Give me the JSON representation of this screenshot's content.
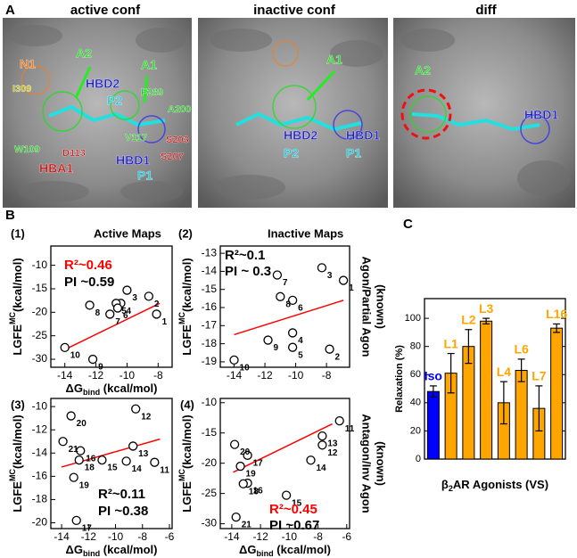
{
  "panel_labels": [
    "A",
    "B",
    "C"
  ],
  "panel_a": {
    "images": [
      {
        "title": "active conf",
        "labels": [
          {
            "text": "N1",
            "color": "#f07a1a"
          },
          {
            "text": "A2",
            "color": "#22dd22"
          },
          {
            "text": "A1",
            "color": "#22dd22"
          },
          {
            "text": "HBD2",
            "color": "#1f1fd0"
          },
          {
            "text": "F289",
            "color": "#22cc22"
          },
          {
            "text": "I309",
            "color": "#c8c820"
          },
          {
            "text": "P2",
            "color": "#20c8d8"
          },
          {
            "text": "A200",
            "color": "#22cc22"
          },
          {
            "text": "V117",
            "color": "#22cc22"
          },
          {
            "text": "S203",
            "color": "#cc1111"
          },
          {
            "text": "W109",
            "color": "#22cc22"
          },
          {
            "text": "D113",
            "color": "#cc1111"
          },
          {
            "text": "S207",
            "color": "#cc1111"
          },
          {
            "text": "HBD1",
            "color": "#1f1fd0"
          },
          {
            "text": "HBA1",
            "color": "#cc1111"
          },
          {
            "text": "P1",
            "color": "#20c8d8"
          }
        ]
      },
      {
        "title": "inactive conf",
        "labels": [
          {
            "text": "A1",
            "color": "#22dd22"
          },
          {
            "text": "HBD2",
            "color": "#1f1fd0"
          },
          {
            "text": "HBD1",
            "color": "#1f1fd0"
          },
          {
            "text": "P2",
            "color": "#20c8d8"
          },
          {
            "text": "P1",
            "color": "#20c8d8"
          }
        ]
      },
      {
        "title": "diff",
        "labels": [
          {
            "text": "A2",
            "color": "#22dd22"
          },
          {
            "text": "HBD1",
            "color": "#1f1fd0"
          }
        ]
      }
    ]
  },
  "chart_data": [
    {
      "type": "scatter",
      "panel": "(1)",
      "title": "Active Maps",
      "xlabel": {
        "text": "ΔG",
        "sub": "bind",
        "unit": " (kcal/mol)"
      },
      "ylabel": {
        "text": "LGFE",
        "sup": "MC",
        "unit": "(kcal/mol)"
      },
      "point_labels": [
        "1",
        "2",
        "3",
        "4",
        "5",
        "6",
        "7",
        "8",
        "9",
        "10"
      ],
      "x": [
        -8.1,
        -8.6,
        -10.0,
        -10.4,
        -10.7,
        -10.6,
        -11.1,
        -12.4,
        -12.2,
        -14.0
      ],
      "y": [
        -20.4,
        -16.6,
        -15.3,
        -18.1,
        -18.1,
        -19.1,
        -20.4,
        -18.5,
        -30.0,
        -27.5
      ],
      "fit": {
        "x": [
          -14.1,
          -7.9
        ],
        "y": [
          -28.1,
          -18.1
        ],
        "color": "#ff0000"
      },
      "annotations": [
        {
          "text": "R²~0.46",
          "color": "#ff0000"
        },
        {
          "text": "PI ~0.59",
          "color": "#000000"
        }
      ],
      "xlim": [
        -14.9,
        -7.1
      ],
      "ylim": [
        -31.7,
        -5.9
      ],
      "xticks": [
        -14,
        -12,
        -10,
        -8
      ],
      "yticks": [
        -10,
        -15,
        -20,
        -25,
        -30
      ]
    },
    {
      "type": "scatter",
      "panel": "(2)",
      "title": "Inactive Maps",
      "ylabel": {
        "text": "LGFE",
        "sup": "MC",
        "unit": "(kcal/mol)"
      },
      "side_label": [
        "Agon/Partial Agon",
        "(known)"
      ],
      "point_labels": [
        "1",
        "2",
        "3",
        "4",
        "5",
        "6",
        "7",
        "8",
        "9",
        "10"
      ],
      "x": [
        -6.9,
        -7.8,
        -8.3,
        -10.2,
        -10.2,
        -10.2,
        -11.2,
        -11.0,
        -11.8,
        -14.0
      ],
      "y": [
        -14.5,
        -18.3,
        -13.8,
        -17.4,
        -18.2,
        -15.6,
        -14.2,
        -15.4,
        -17.8,
        -18.9
      ],
      "fit": {
        "x": [
          -14.0,
          -6.9
        ],
        "y": [
          -17.5,
          -15.6
        ],
        "color": "#ff0000"
      },
      "annotations": [
        {
          "text": "R²~0.1",
          "color": "#000000"
        },
        {
          "text": "PI ~ 0.3",
          "color": "#000000"
        }
      ],
      "xlim": [
        -14.9,
        -6.5
      ],
      "ylim": [
        -19.3,
        -12.6
      ],
      "xticks": [
        -14,
        -12,
        -10,
        -8
      ],
      "yticks": [
        -13,
        -14,
        -15,
        -16,
        -17,
        -18,
        -19
      ]
    },
    {
      "type": "scatter",
      "panel": "(3)",
      "xlabel": {
        "text": "ΔG",
        "sub": "bind",
        "unit": " (kcal/mol)"
      },
      "ylabel": {
        "text": "LGFE",
        "sup": "MC",
        "unit": "(kcal/mol)"
      },
      "point_labels": [
        "11",
        "12",
        "13",
        "14",
        "15",
        "16",
        "17",
        "18",
        "19",
        "20",
        "21"
      ],
      "x": [
        -7.1,
        -8.5,
        -8.7,
        -9.2,
        -11.0,
        -12.6,
        -12.9,
        -12.7,
        -13.1,
        -13.3,
        -13.9
      ],
      "y": [
        -14.8,
        -10.2,
        -13.4,
        -14.7,
        -14.6,
        -13.8,
        -19.8,
        -14.6,
        -16.1,
        -10.8,
        -13.0
      ],
      "fit": {
        "x": [
          -14.0,
          -6.7
        ],
        "y": [
          -15.2,
          -12.8
        ],
        "color": "#ff0000"
      },
      "annotations": [
        {
          "text": "R²~0.11",
          "color": "#000000"
        },
        {
          "text": "PI ~0.38",
          "color": "#000000"
        }
      ],
      "xlim": [
        -14.8,
        -5.8
      ],
      "ylim": [
        -20.5,
        -9.3
      ],
      "xticks": [
        -14,
        -12,
        -10,
        -8,
        -6
      ],
      "yticks": [
        -10,
        -12,
        -14,
        -16,
        -18,
        -20
      ]
    },
    {
      "type": "scatter",
      "panel": "(4)",
      "xlabel": {
        "text": "ΔG",
        "sub": "bind",
        "unit": " (kcal/mol)"
      },
      "ylabel": {
        "text": "LGFE",
        "sup": "MC",
        "unit": "(kcal/mol)"
      },
      "side_label": [
        "Antagon/Inv Agon",
        "(known)"
      ],
      "point_labels": [
        "11",
        "12",
        "13",
        "14",
        "15",
        "16",
        "17",
        "18",
        "19",
        "20",
        "21"
      ],
      "x": [
        -6.5,
        -7.7,
        -7.7,
        -8.5,
        -10.2,
        -12.9,
        -12.9,
        -13.2,
        -13.4,
        -13.8,
        -13.7
      ],
      "y": [
        -13.0,
        -17.0,
        -15.5,
        -19.5,
        -25.3,
        -23.3,
        -18.7,
        -23.4,
        -20.5,
        -16.9,
        -28.9
      ],
      "fit": {
        "x": [
          -13.9,
          -7.0
        ],
        "y": [
          -21.5,
          -13.5
        ],
        "color": "#ff0000"
      },
      "annotations": [
        {
          "text": "R²~0.45",
          "color": "#ff0000"
        },
        {
          "text": "PI ~0.67",
          "color": "#000000"
        }
      ],
      "xlim": [
        -14.8,
        -5.8
      ],
      "ylim": [
        -30.8,
        -9.3
      ],
      "xticks": [
        -14,
        -12,
        -10,
        -8,
        -6
      ],
      "yticks": [
        -10,
        -15,
        -20,
        -25,
        -30
      ]
    },
    {
      "type": "bar",
      "categories": [
        "Iso",
        "L1",
        "L2",
        "L3",
        "L4",
        "L6",
        "L7",
        "L16"
      ],
      "values": [
        48,
        61,
        80,
        98,
        40,
        63,
        36,
        93
      ],
      "errors": [
        4,
        14,
        12,
        2,
        15,
        8,
        16,
        3
      ],
      "colors": [
        "#0000ff",
        "#ffa500",
        "#ffa500",
        "#ffa500",
        "#ffa500",
        "#ffa500",
        "#ffa500",
        "#ffa500"
      ],
      "ylabel": "Relaxation (%)",
      "xlabel": {
        "text": "β",
        "sub": "2",
        "rest": "AR Agonists (VS)"
      },
      "ylim": [
        0,
        114
      ],
      "yticks": [
        0,
        20,
        40,
        60,
        80,
        100
      ]
    }
  ]
}
